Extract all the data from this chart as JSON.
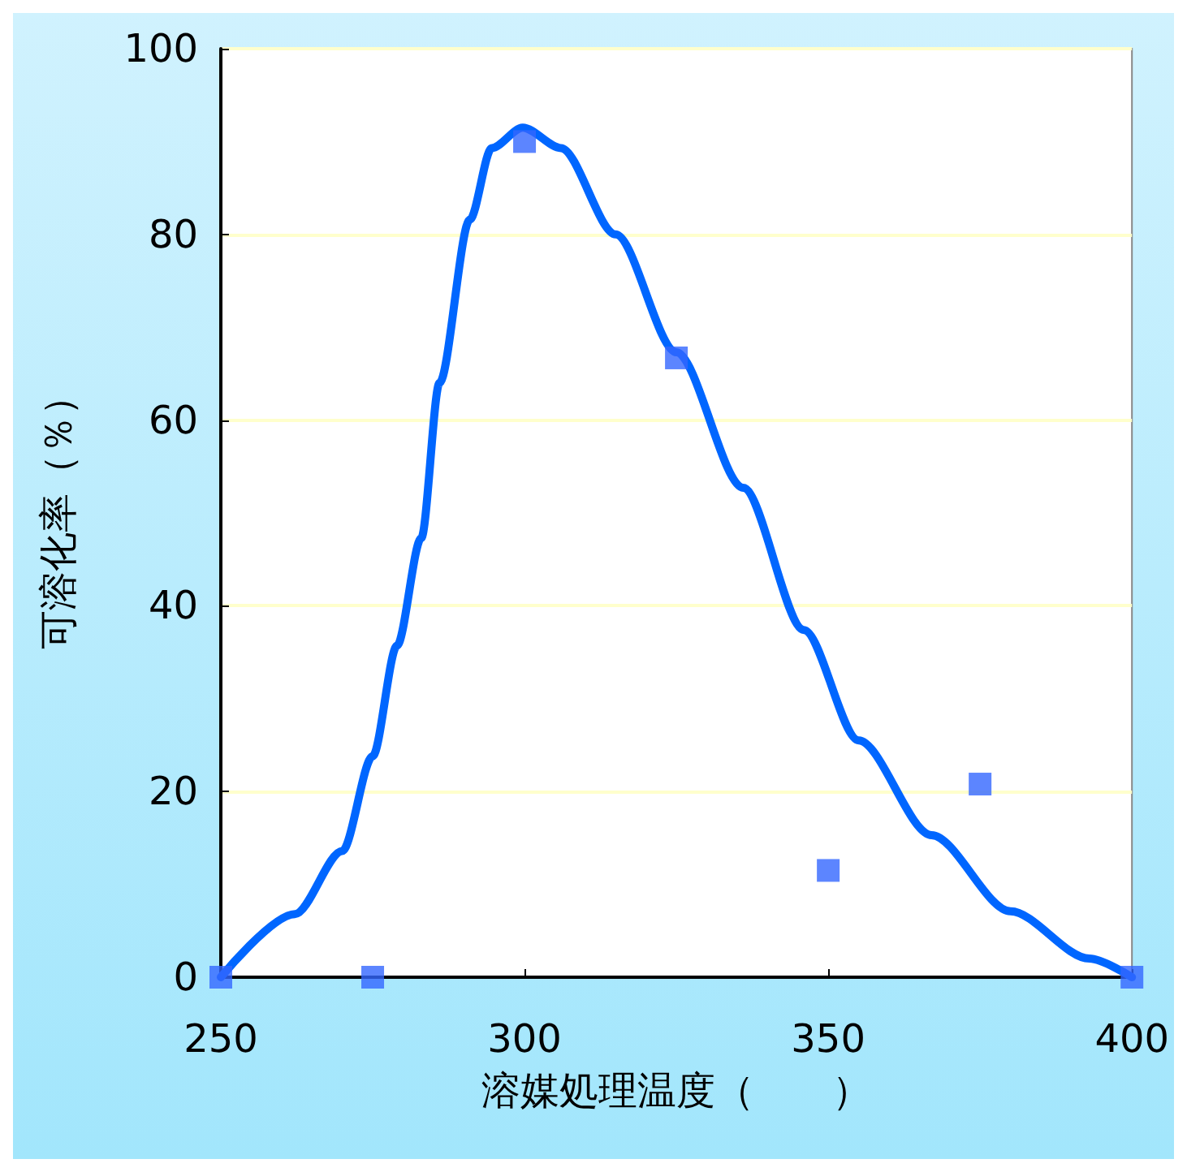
{
  "chart_data": {
    "type": "scatter",
    "xlabel": "溶媒処理温度（　　）",
    "ylabel": "可溶化率（％）",
    "xlim": [
      250,
      400
    ],
    "xticks": [
      250,
      300,
      350,
      400
    ],
    "ylim": [
      0,
      100
    ],
    "yticks": [
      0,
      20,
      40,
      60,
      80,
      100
    ],
    "grid": "y",
    "marker": "square",
    "series": [
      {
        "color": "#3366ff",
        "x": [
          250,
          275,
          300,
          325,
          350,
          375,
          400
        ],
        "values": [
          0,
          0,
          90,
          66.7,
          11.5,
          20.8,
          0
        ]
      },
      {
        "type": "line",
        "color": "#0066ff",
        "line_style": "solid",
        "marker": "none",
        "x": [
          250,
          262.2,
          270,
          275,
          279,
          283,
          286,
          291,
          294.6,
          299.7,
          306,
          315,
          325,
          336,
          346,
          355,
          367,
          380,
          393,
          400
        ],
        "values": [
          0,
          6.8,
          13.6,
          23.8,
          35.7,
          47.3,
          64,
          81.6,
          89.3,
          91.5,
          89.3,
          80,
          67.3,
          52.7,
          37.4,
          25.5,
          15.3,
          7.1,
          2,
          0
        ]
      }
    ]
  }
}
